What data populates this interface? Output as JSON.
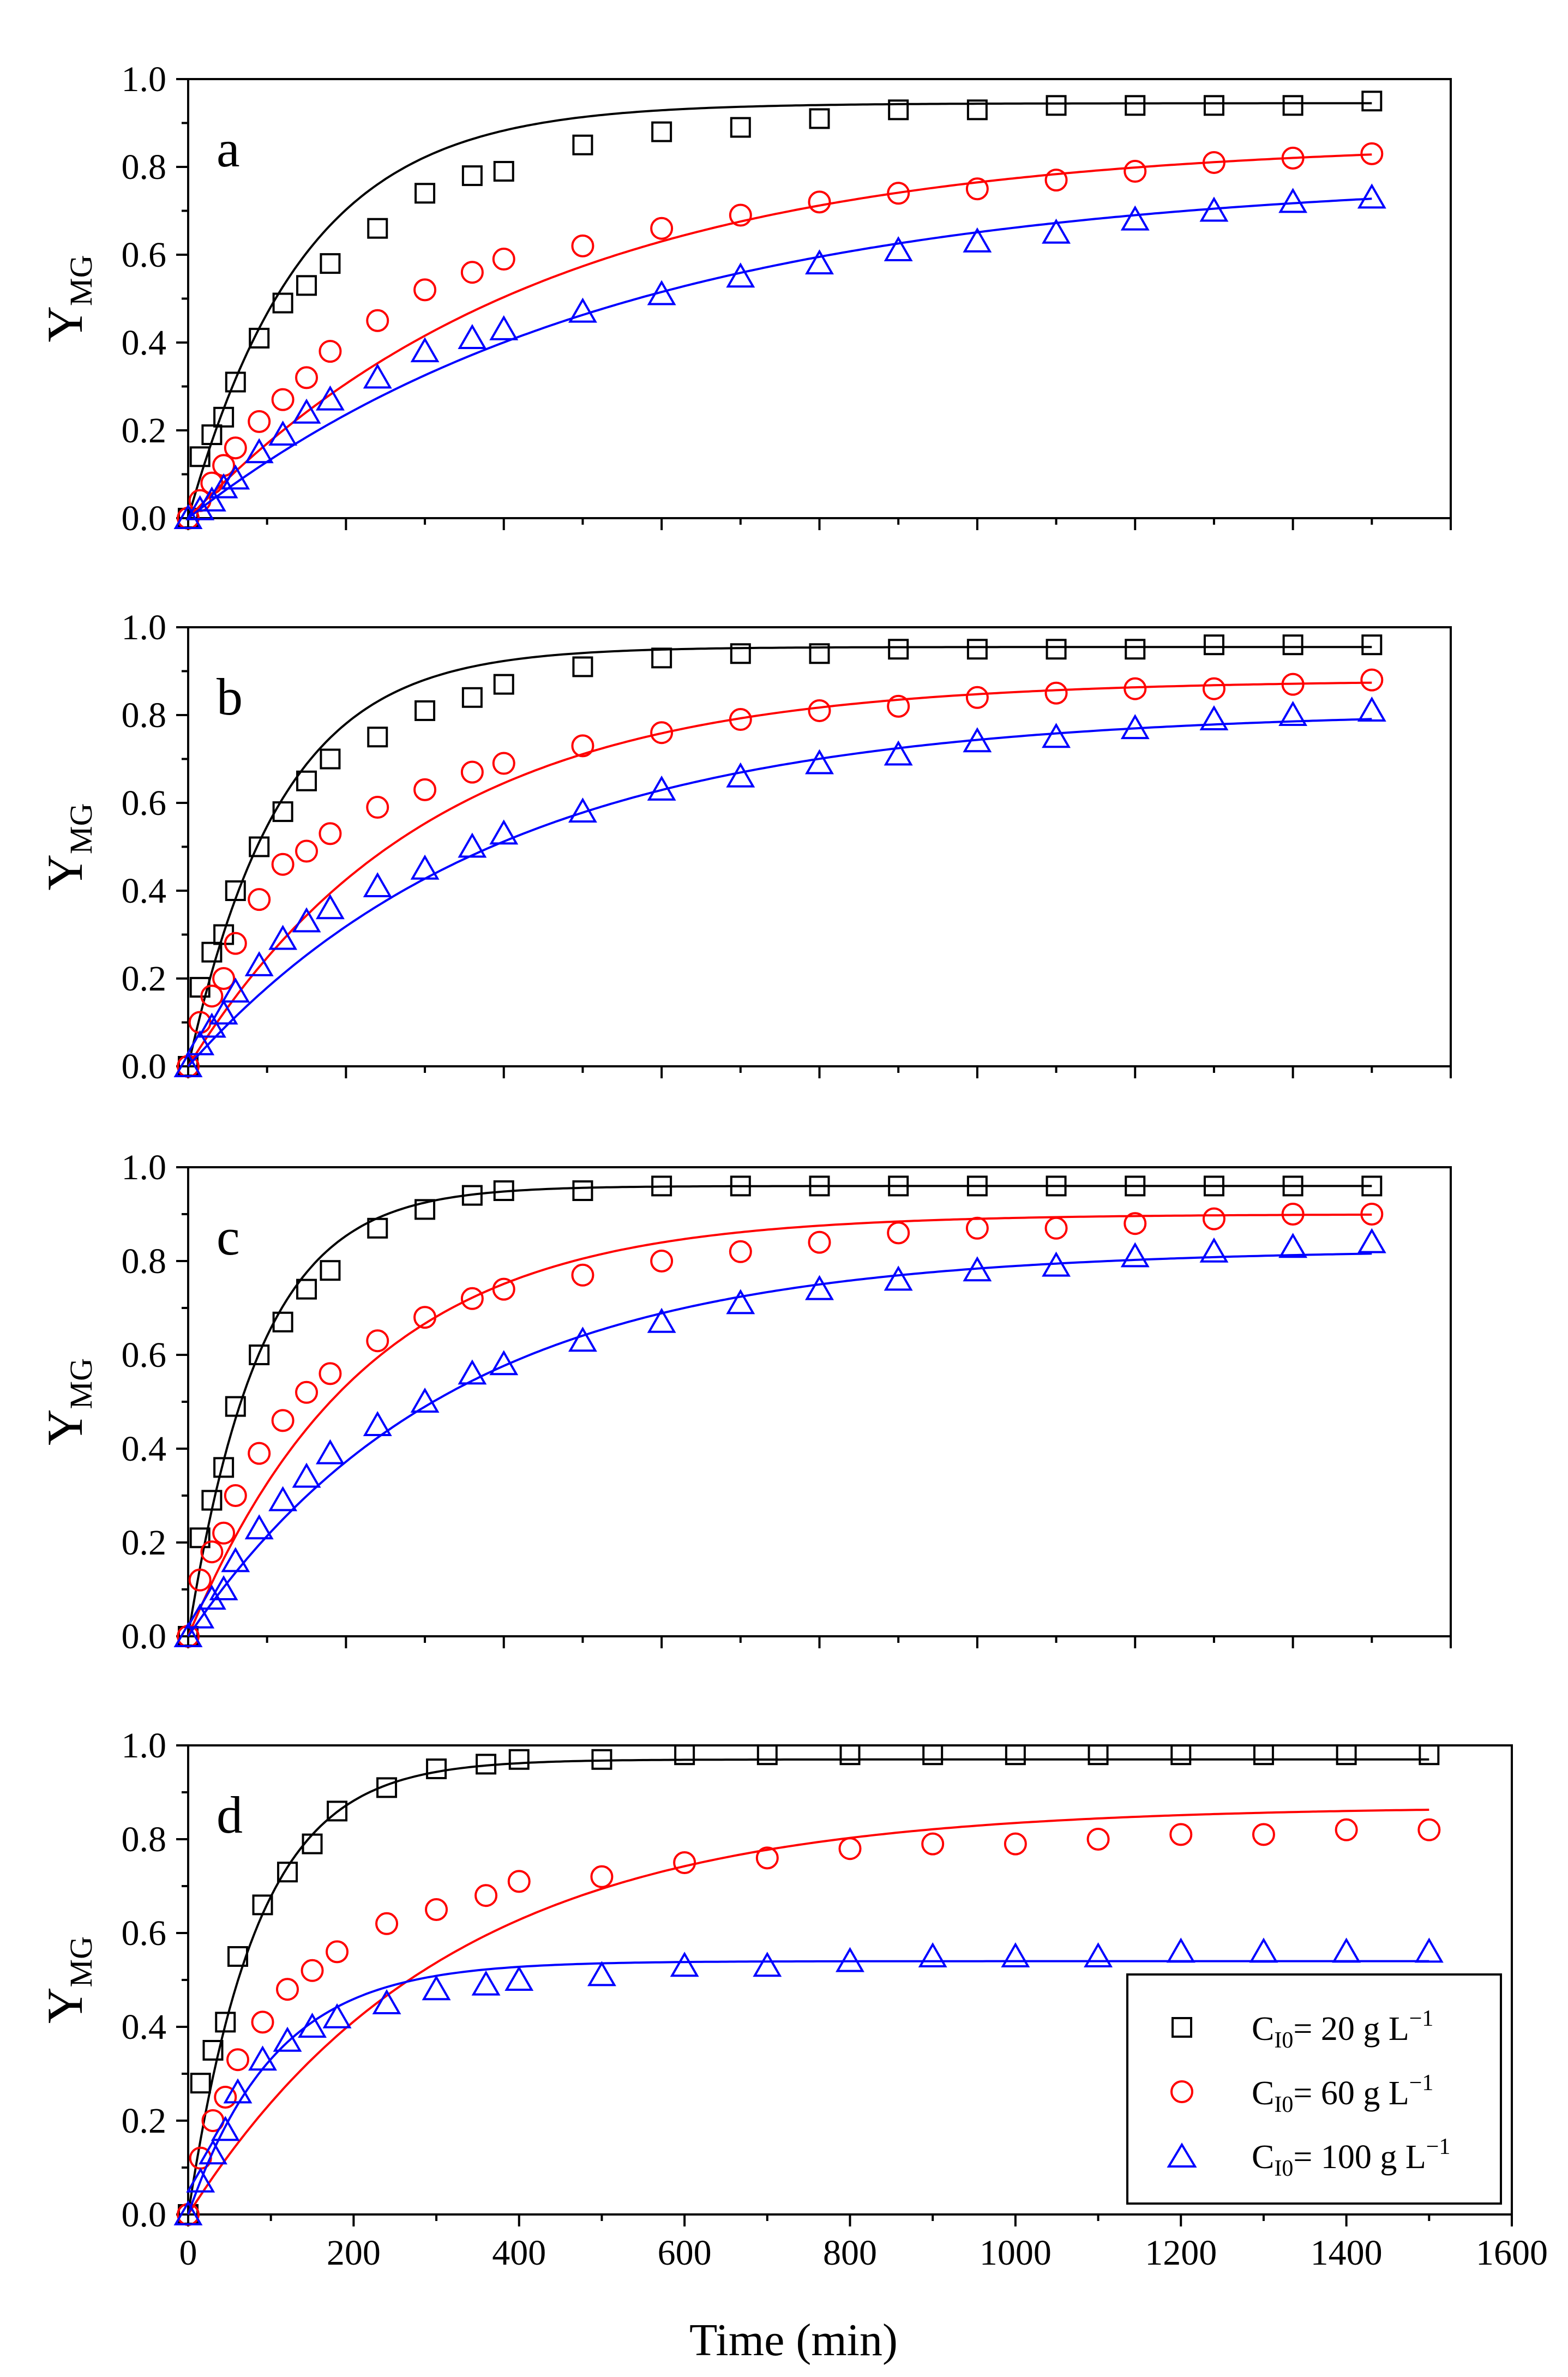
{
  "figure": {
    "x_axis_title": "Time (min)",
    "y_axis_title_main": "Y",
    "y_axis_title_sub": "MG",
    "x_tick_labels": [
      "0",
      "200",
      "400",
      "600",
      "800",
      "1000",
      "1200",
      "1400",
      "1600"
    ],
    "y_tick_labels": [
      "0.0",
      "0.2",
      "0.4",
      "0.6",
      "0.8",
      "1.0"
    ]
  },
  "legend": {
    "position": "bottom-right of panel d",
    "entries": [
      {
        "series": "C_I0 = 20 g L-1",
        "prefix": "C",
        "sub": "I0",
        "text": "= 20 g L",
        "sup": "−1",
        "marker": "square",
        "color": "#000000"
      },
      {
        "series": "C_I0 = 60 g L-1",
        "prefix": "C",
        "sub": "I0",
        "text": "= 60 g L",
        "sup": "−1",
        "marker": "circle",
        "color": "#ff0000"
      },
      {
        "series": "C_I0 = 100 g L-1",
        "prefix": "C",
        "sub": "I0",
        "text": "= 100 g L",
        "sup": "−1",
        "marker": "triangle",
        "color": "#0000ff"
      }
    ]
  },
  "chart_data": [
    {
      "panel": "a",
      "type": "scatter+line",
      "xlabel": "",
      "ylabel": "YMG",
      "xlim": [
        0,
        1600
      ],
      "ylim": [
        0,
        1.0
      ],
      "grid": false,
      "xaxis_end": 1600,
      "series": [
        {
          "name": "C_I0 = 20 g L-1",
          "marker": "square",
          "color": "#000000",
          "x": [
            0,
            15,
            30,
            45,
            60,
            90,
            120,
            150,
            180,
            240,
            300,
            360,
            400,
            500,
            600,
            700,
            800,
            900,
            1000,
            1100,
            1200,
            1300,
            1400,
            1500
          ],
          "y": [
            0.0,
            0.14,
            0.19,
            0.23,
            0.31,
            0.41,
            0.49,
            0.53,
            0.58,
            0.66,
            0.74,
            0.78,
            0.79,
            0.85,
            0.88,
            0.89,
            0.91,
            0.93,
            0.93,
            0.94,
            0.94,
            0.94,
            0.94,
            0.95
          ],
          "fit": {
            "ymax": 0.945,
            "k": 0.0068
          }
        },
        {
          "name": "C_I0 = 60 g L-1",
          "marker": "circle",
          "color": "#ff0000",
          "x": [
            0,
            15,
            30,
            45,
            60,
            90,
            120,
            150,
            180,
            240,
            300,
            360,
            400,
            500,
            600,
            700,
            800,
            900,
            1000,
            1100,
            1200,
            1300,
            1400,
            1500
          ],
          "y": [
            0.0,
            0.04,
            0.08,
            0.12,
            0.16,
            0.22,
            0.27,
            0.32,
            0.38,
            0.45,
            0.52,
            0.56,
            0.59,
            0.62,
            0.66,
            0.69,
            0.72,
            0.74,
            0.75,
            0.77,
            0.79,
            0.81,
            0.82,
            0.83
          ],
          "fit": {
            "ymax": 0.86,
            "k": 0.0022
          }
        },
        {
          "name": "C_I0 = 100 g L-1",
          "marker": "triangle",
          "color": "#0000ff",
          "x": [
            0,
            15,
            30,
            45,
            60,
            90,
            120,
            150,
            180,
            240,
            300,
            360,
            400,
            500,
            600,
            700,
            800,
            900,
            1000,
            1100,
            1200,
            1300,
            1400,
            1500
          ],
          "y": [
            0.0,
            0.02,
            0.04,
            0.07,
            0.09,
            0.15,
            0.19,
            0.24,
            0.27,
            0.32,
            0.38,
            0.41,
            0.43,
            0.47,
            0.51,
            0.55,
            0.58,
            0.61,
            0.63,
            0.65,
            0.68,
            0.7,
            0.72,
            0.73
          ],
          "fit": {
            "ymax": 0.78,
            "k": 0.0018
          }
        }
      ]
    },
    {
      "panel": "b",
      "type": "scatter+line",
      "xlabel": "",
      "ylabel": "YMG",
      "xlim": [
        0,
        1600
      ],
      "ylim": [
        0,
        1.0
      ],
      "grid": false,
      "xaxis_end": 1600,
      "series": [
        {
          "name": "C_I0 = 20 g L-1",
          "marker": "square",
          "color": "#000000",
          "x": [
            0,
            15,
            30,
            45,
            60,
            90,
            120,
            150,
            180,
            240,
            300,
            360,
            400,
            500,
            600,
            700,
            800,
            900,
            1000,
            1100,
            1200,
            1300,
            1400,
            1500
          ],
          "y": [
            0.0,
            0.18,
            0.26,
            0.3,
            0.4,
            0.5,
            0.58,
            0.65,
            0.7,
            0.75,
            0.81,
            0.84,
            0.87,
            0.91,
            0.93,
            0.94,
            0.94,
            0.95,
            0.95,
            0.95,
            0.95,
            0.96,
            0.96,
            0.96
          ],
          "fit": {
            "ymax": 0.955,
            "k": 0.0085
          }
        },
        {
          "name": "C_I0 = 60 g L-1",
          "marker": "circle",
          "color": "#ff0000",
          "x": [
            0,
            15,
            30,
            45,
            60,
            90,
            120,
            150,
            180,
            240,
            300,
            360,
            400,
            500,
            600,
            700,
            800,
            900,
            1000,
            1100,
            1200,
            1300,
            1400,
            1500
          ],
          "y": [
            0.0,
            0.1,
            0.16,
            0.2,
            0.28,
            0.38,
            0.46,
            0.49,
            0.53,
            0.59,
            0.63,
            0.67,
            0.69,
            0.73,
            0.76,
            0.79,
            0.81,
            0.82,
            0.84,
            0.85,
            0.86,
            0.86,
            0.87,
            0.88
          ],
          "fit": {
            "ymax": 0.88,
            "k": 0.0033
          }
        },
        {
          "name": "C_I0 = 100 g L-1",
          "marker": "triangle",
          "color": "#0000ff",
          "x": [
            0,
            15,
            30,
            45,
            60,
            90,
            120,
            150,
            180,
            240,
            300,
            360,
            400,
            500,
            600,
            700,
            800,
            900,
            1000,
            1100,
            1200,
            1300,
            1400,
            1500
          ],
          "y": [
            0.0,
            0.05,
            0.09,
            0.12,
            0.17,
            0.23,
            0.29,
            0.33,
            0.36,
            0.41,
            0.45,
            0.5,
            0.53,
            0.58,
            0.63,
            0.66,
            0.69,
            0.71,
            0.74,
            0.75,
            0.77,
            0.79,
            0.8,
            0.81
          ],
          "fit": {
            "ymax": 0.81,
            "k": 0.0025
          }
        }
      ]
    },
    {
      "panel": "c",
      "type": "scatter+line",
      "xlabel": "",
      "ylabel": "YMG",
      "xlim": [
        0,
        1600
      ],
      "ylim": [
        0,
        1.0
      ],
      "grid": false,
      "xaxis_end": 1600,
      "series": [
        {
          "name": "C_I0 = 20 g L-1",
          "marker": "square",
          "color": "#000000",
          "x": [
            0,
            15,
            30,
            45,
            60,
            90,
            120,
            150,
            180,
            240,
            300,
            360,
            400,
            500,
            600,
            700,
            800,
            900,
            1000,
            1100,
            1200,
            1300,
            1400,
            1500
          ],
          "y": [
            0.0,
            0.21,
            0.29,
            0.36,
            0.49,
            0.6,
            0.67,
            0.74,
            0.78,
            0.87,
            0.91,
            0.94,
            0.95,
            0.95,
            0.96,
            0.96,
            0.96,
            0.96,
            0.96,
            0.96,
            0.96,
            0.96,
            0.96,
            0.96
          ],
          "fit": {
            "ymax": 0.96,
            "k": 0.011
          }
        },
        {
          "name": "C_I0 = 60 g L-1",
          "marker": "circle",
          "color": "#ff0000",
          "x": [
            0,
            15,
            30,
            45,
            60,
            90,
            120,
            150,
            180,
            240,
            300,
            360,
            400,
            500,
            600,
            700,
            800,
            900,
            1000,
            1100,
            1200,
            1300,
            1400,
            1500
          ],
          "y": [
            0.0,
            0.12,
            0.18,
            0.22,
            0.3,
            0.39,
            0.46,
            0.52,
            0.56,
            0.63,
            0.68,
            0.72,
            0.74,
            0.77,
            0.8,
            0.82,
            0.84,
            0.86,
            0.87,
            0.87,
            0.88,
            0.89,
            0.9,
            0.9
          ],
          "fit": {
            "ymax": 0.9,
            "k": 0.0045
          }
        },
        {
          "name": "C_I0 = 100 g L-1",
          "marker": "triangle",
          "color": "#0000ff",
          "x": [
            0,
            15,
            30,
            45,
            60,
            90,
            120,
            150,
            180,
            240,
            300,
            360,
            400,
            500,
            600,
            700,
            800,
            900,
            1000,
            1100,
            1200,
            1300,
            1400,
            1500
          ],
          "y": [
            0.0,
            0.04,
            0.08,
            0.1,
            0.16,
            0.23,
            0.29,
            0.34,
            0.39,
            0.45,
            0.5,
            0.56,
            0.58,
            0.63,
            0.67,
            0.71,
            0.74,
            0.76,
            0.78,
            0.79,
            0.81,
            0.82,
            0.83,
            0.84
          ],
          "fit": {
            "ymax": 0.825,
            "k": 0.003
          }
        }
      ]
    },
    {
      "panel": "d",
      "type": "scatter+line",
      "xlabel": "Time (min)",
      "ylabel": "YMG",
      "xlim": [
        0,
        1600
      ],
      "ylim": [
        0,
        1.0
      ],
      "grid": false,
      "xaxis_end": 1600,
      "series": [
        {
          "name": "C_I0 = 20 g L-1",
          "marker": "square",
          "color": "#000000",
          "x": [
            0,
            15,
            30,
            45,
            60,
            90,
            120,
            150,
            180,
            240,
            300,
            360,
            400,
            500,
            600,
            700,
            800,
            900,
            1000,
            1100,
            1200,
            1300,
            1400,
            1500
          ],
          "y": [
            0.0,
            0.28,
            0.35,
            0.41,
            0.55,
            0.66,
            0.73,
            0.79,
            0.86,
            0.91,
            0.95,
            0.96,
            0.97,
            0.97,
            0.98,
            0.98,
            0.98,
            0.98,
            0.98,
            0.98,
            0.98,
            0.98,
            0.98,
            0.98
          ],
          "fit": {
            "ymax": 0.97,
            "k": 0.012
          }
        },
        {
          "name": "C_I0 = 60 g L-1",
          "marker": "circle",
          "color": "#ff0000",
          "x": [
            0,
            15,
            30,
            45,
            60,
            90,
            120,
            150,
            180,
            240,
            300,
            360,
            400,
            500,
            600,
            700,
            800,
            900,
            1000,
            1100,
            1200,
            1300,
            1400,
            1500
          ],
          "y": [
            0.0,
            0.12,
            0.2,
            0.25,
            0.33,
            0.41,
            0.48,
            0.52,
            0.56,
            0.62,
            0.65,
            0.68,
            0.71,
            0.72,
            0.75,
            0.76,
            0.78,
            0.79,
            0.79,
            0.8,
            0.81,
            0.81,
            0.82,
            0.82
          ],
          "fit": {
            "ymax": 0.87,
            "k": 0.0032
          }
        },
        {
          "name": "C_I0 = 100 g L-1",
          "marker": "triangle",
          "color": "#0000ff",
          "x": [
            0,
            15,
            30,
            45,
            60,
            90,
            120,
            150,
            180,
            240,
            300,
            360,
            400,
            500,
            600,
            700,
            800,
            900,
            1000,
            1100,
            1200,
            1300,
            1400,
            1500
          ],
          "y": [
            0.0,
            0.07,
            0.13,
            0.18,
            0.26,
            0.33,
            0.37,
            0.4,
            0.42,
            0.45,
            0.48,
            0.49,
            0.5,
            0.51,
            0.53,
            0.53,
            0.54,
            0.55,
            0.55,
            0.55,
            0.56,
            0.56,
            0.56,
            0.56
          ],
          "fit": {
            "ymax": 0.54,
            "k": 0.0095
          }
        }
      ]
    }
  ]
}
